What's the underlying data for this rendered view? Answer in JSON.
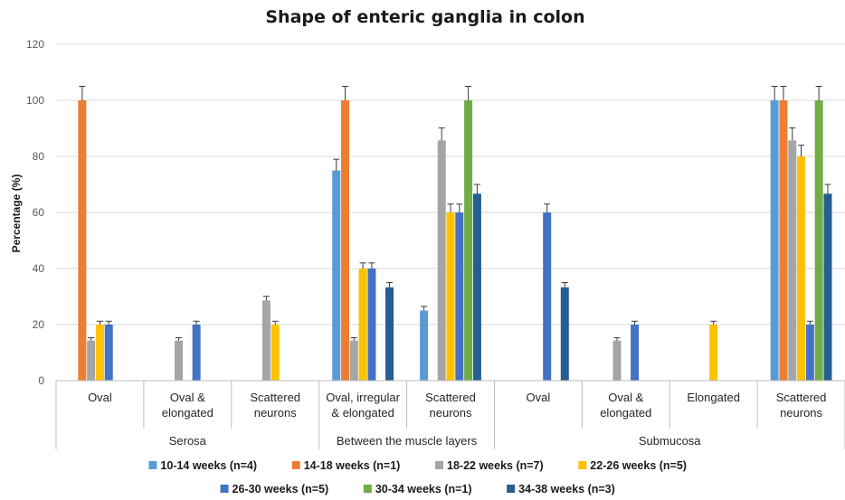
{
  "chart_data": {
    "type": "bar",
    "title": "Shape of enteric ganglia in colon",
    "ylabel": "Percentage (%)",
    "xlabel": "",
    "ylim": [
      0,
      120
    ],
    "yticks": [
      0,
      20,
      40,
      60,
      80,
      100,
      120
    ],
    "grid": true,
    "legend_position": "bottom",
    "groups": [
      {
        "label": "Serosa",
        "categories": [
          "Oval",
          "Oval & elongated",
          "Scattered neurons"
        ]
      },
      {
        "label": "Between the muscle layers",
        "categories": [
          "Oval, irregular & elongated",
          "Scattered neurons"
        ]
      },
      {
        "label": "Submucosa",
        "categories": [
          "Oval",
          "Oval & elongated",
          "Elongated",
          "Scattered neurons"
        ]
      }
    ],
    "category_lines": [
      [
        "Oval"
      ],
      [
        "Oval &",
        "elongated"
      ],
      [
        "Scattered",
        "neurons"
      ],
      [
        "Oval, irregular",
        "& elongated"
      ],
      [
        "Scattered",
        "neurons"
      ],
      [
        "Oval"
      ],
      [
        "Oval &",
        "elongated"
      ],
      [
        "Elongated"
      ],
      [
        "Scattered",
        "neurons"
      ]
    ],
    "series": [
      {
        "name": "10-14 weeks (n=4)",
        "color": "#5B9BD5",
        "values": [
          0,
          0,
          0,
          75,
          25,
          0,
          0,
          0,
          100
        ],
        "errors": [
          0,
          0,
          0,
          4,
          1.5,
          0,
          0,
          0,
          5
        ]
      },
      {
        "name": "14-18 weeks (n=1)",
        "color": "#ED7D31",
        "values": [
          100,
          0,
          0,
          100,
          0,
          0,
          0,
          0,
          100
        ],
        "errors": [
          5,
          0,
          0,
          5,
          0,
          0,
          0,
          0,
          5
        ]
      },
      {
        "name": "18-22 weeks (n=7)",
        "color": "#A5A5A5",
        "values": [
          14.3,
          14.3,
          28.6,
          14.3,
          85.7,
          0,
          14.3,
          0,
          85.7
        ],
        "errors": [
          1,
          1,
          1.5,
          1,
          4.5,
          0,
          1,
          0,
          4.5
        ]
      },
      {
        "name": "22-26 weeks (n=5)",
        "color": "#FFC000",
        "values": [
          20,
          0,
          20,
          40,
          60,
          0,
          0,
          20,
          80
        ],
        "errors": [
          1.2,
          0,
          1.2,
          2,
          3,
          0,
          0,
          1.2,
          4
        ]
      },
      {
        "name": "26-30 weeks (n=5)",
        "color": "#4472C4",
        "values": [
          20,
          20,
          0,
          40,
          60,
          60,
          20,
          0,
          20
        ],
        "errors": [
          1.2,
          1.2,
          0,
          2,
          3,
          3,
          1.2,
          0,
          1.2
        ]
      },
      {
        "name": "30-34 weeks (n=1)",
        "color": "#70AD47",
        "values": [
          0,
          0,
          0,
          0,
          100,
          0,
          0,
          0,
          100
        ],
        "errors": [
          0,
          0,
          0,
          0,
          5,
          0,
          0,
          0,
          5
        ]
      },
      {
        "name": "34-38 weeks (n=3)",
        "color": "#255E91",
        "values": [
          0,
          0,
          0,
          33.3,
          66.7,
          33.3,
          0,
          0,
          66.7
        ],
        "errors": [
          0,
          0,
          0,
          1.7,
          3.3,
          1.7,
          0,
          0,
          3.3
        ]
      }
    ],
    "legend_rows": [
      [
        0,
        1,
        2,
        3
      ],
      [
        4,
        5,
        6
      ]
    ]
  }
}
